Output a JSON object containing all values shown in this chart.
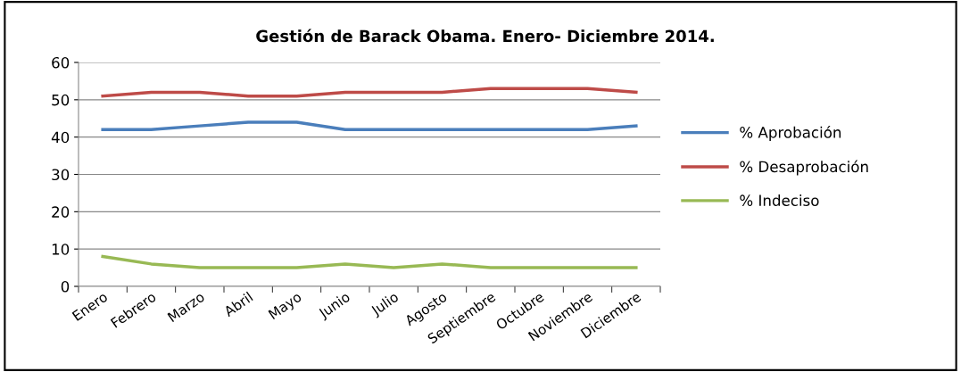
{
  "chart_data": {
    "type": "line",
    "title": "Gestión de Barack Obama. Enero- Diciembre 2014.",
    "categories": [
      "Enero",
      "Febrero",
      "Marzo",
      "Abril",
      "Mayo",
      "Junio",
      "Julio",
      "Agosto",
      "Septiembre",
      "Octubre",
      "Noviembre",
      "Diciembre"
    ],
    "series": [
      {
        "name": "% Aprobación",
        "color": "#4a7ebb",
        "values": [
          42,
          42,
          43,
          44,
          44,
          42,
          42,
          42,
          42,
          42,
          42,
          43
        ]
      },
      {
        "name": "% Desaprobación",
        "color": "#be4b48",
        "values": [
          51,
          52,
          52,
          51,
          51,
          52,
          52,
          52,
          53,
          53,
          53,
          52
        ]
      },
      {
        "name": "% Indeciso",
        "color": "#98b954",
        "values": [
          8,
          6,
          5,
          5,
          5,
          6,
          5,
          6,
          5,
          5,
          5,
          5
        ]
      }
    ],
    "ylim": [
      0,
      60
    ],
    "yticks": [
      0,
      10,
      20,
      30,
      40,
      50,
      60
    ],
    "grid": "y",
    "legend": "right",
    "marker": "none"
  }
}
